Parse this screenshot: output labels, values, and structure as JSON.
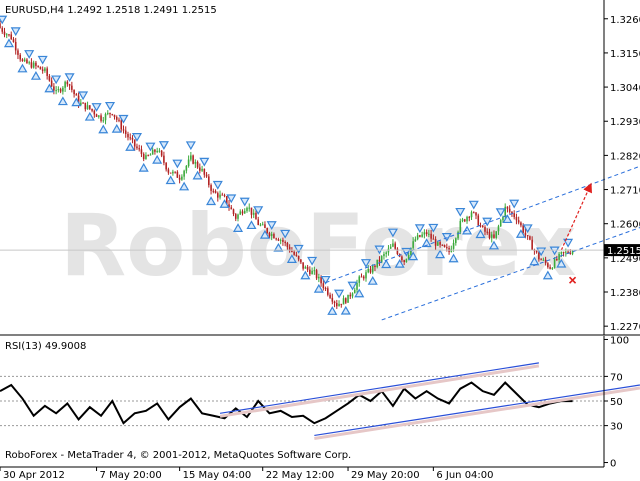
{
  "chart_data": {
    "type": "candlestick",
    "price_panel": {
      "title": "EURUSD,H4  1.2492 1.2518 1.2491 1.2515",
      "y_ticks": [
        "1.3260",
        "1.3150",
        "1.3040",
        "1.2930",
        "1.2820",
        "1.2710",
        "1.2600",
        "1.2490",
        "1.2380",
        "1.2270"
      ],
      "y_tick_values": [
        1.326,
        1.315,
        1.304,
        1.293,
        1.282,
        1.271,
        1.26,
        1.249,
        1.238,
        1.227
      ],
      "ylim": [
        1.2248,
        1.3314
      ],
      "current_price_label": "1.2515",
      "current_price": 1.2515,
      "close_path": [
        [
          0,
          1.323
        ],
        [
          5,
          1.32
        ],
        [
          10,
          1.312
        ],
        [
          15,
          1.311
        ],
        [
          20,
          1.309
        ],
        [
          25,
          1.302
        ],
        [
          30,
          1.306
        ],
        [
          35,
          1.299
        ],
        [
          40,
          1.297
        ],
        [
          45,
          1.294
        ],
        [
          50,
          1.296
        ],
        [
          55,
          1.29
        ],
        [
          60,
          1.285
        ],
        [
          65,
          1.281
        ],
        [
          70,
          1.284
        ],
        [
          75,
          1.277
        ],
        [
          80,
          1.275
        ],
        [
          85,
          1.281
        ],
        [
          90,
          1.277
        ],
        [
          95,
          1.27
        ],
        [
          100,
          1.268
        ],
        [
          105,
          1.262
        ],
        [
          110,
          1.266
        ],
        [
          115,
          1.26
        ],
        [
          120,
          1.257
        ],
        [
          125,
          1.255
        ],
        [
          130,
          1.251
        ],
        [
          135,
          1.246
        ],
        [
          140,
          1.244
        ],
        [
          145,
          1.239
        ],
        [
          150,
          1.234
        ],
        [
          155,
          1.236
        ],
        [
          160,
          1.242
        ],
        [
          165,
          1.245
        ],
        [
          170,
          1.249
        ],
        [
          175,
          1.253
        ],
        [
          180,
          1.248
        ],
        [
          185,
          1.255
        ],
        [
          190,
          1.257
        ],
        [
          195,
          1.253
        ],
        [
          200,
          1.251
        ],
        [
          205,
          1.26
        ],
        [
          210,
          1.264
        ],
        [
          215,
          1.258
        ],
        [
          220,
          1.255
        ],
        [
          225,
          1.265
        ],
        [
          230,
          1.262
        ],
        [
          235,
          1.255
        ],
        [
          240,
          1.249
        ],
        [
          245,
          1.246
        ],
        [
          250,
          1.25
        ],
        [
          255,
          1.2515
        ]
      ],
      "channel": {
        "upper": [
          [
            145,
            1.241
          ],
          [
            285,
            1.2785
          ]
        ],
        "lower": [
          [
            170,
            1.229
          ],
          [
            315,
            1.2665
          ]
        ]
      },
      "forecast_arrow": [
        [
          250,
          1.2515
        ],
        [
          263,
          1.2725
        ]
      ],
      "stop_marker": [
        255,
        1.2418
      ]
    },
    "rsi_panel": {
      "title": "RSI(13) 49.9008",
      "y_ticks": [
        "100",
        "70",
        "50",
        "30",
        "0"
      ],
      "y_tick_values": [
        100,
        70,
        50,
        30,
        0
      ],
      "ylim": [
        -2,
        102
      ],
      "levels": [
        70,
        50,
        30
      ],
      "values": [
        [
          0,
          58
        ],
        [
          5,
          63
        ],
        [
          10,
          52
        ],
        [
          15,
          38
        ],
        [
          20,
          46
        ],
        [
          25,
          40
        ],
        [
          30,
          48
        ],
        [
          35,
          35
        ],
        [
          40,
          45
        ],
        [
          45,
          38
        ],
        [
          50,
          50
        ],
        [
          55,
          32
        ],
        [
          60,
          40
        ],
        [
          65,
          42
        ],
        [
          70,
          48
        ],
        [
          75,
          35
        ],
        [
          80,
          45
        ],
        [
          85,
          52
        ],
        [
          90,
          40
        ],
        [
          95,
          38
        ],
        [
          100,
          36
        ],
        [
          105,
          44
        ],
        [
          110,
          37
        ],
        [
          115,
          50
        ],
        [
          120,
          40
        ],
        [
          125,
          42
        ],
        [
          130,
          37
        ],
        [
          135,
          38
        ],
        [
          140,
          32
        ],
        [
          145,
          36
        ],
        [
          150,
          42
        ],
        [
          155,
          48
        ],
        [
          160,
          55
        ],
        [
          165,
          50
        ],
        [
          170,
          58
        ],
        [
          175,
          46
        ],
        [
          180,
          60
        ],
        [
          185,
          52
        ],
        [
          190,
          58
        ],
        [
          195,
          52
        ],
        [
          200,
          48
        ],
        [
          205,
          60
        ],
        [
          210,
          65
        ],
        [
          215,
          58
        ],
        [
          220,
          55
        ],
        [
          225,
          65
        ],
        [
          230,
          56
        ],
        [
          235,
          47
        ],
        [
          240,
          45
        ],
        [
          245,
          48
        ],
        [
          250,
          50
        ],
        [
          255,
          49.9
        ]
      ],
      "channel": {
        "upper": [
          [
            98,
            40
          ],
          [
            240,
            81
          ]
        ],
        "lower": [
          [
            140,
            22
          ],
          [
            285,
            63
          ]
        ]
      }
    },
    "x_ticks": [
      "30 Apr 2012",
      "7 May 20:00",
      "15 May 04:00",
      "22 May 12:00",
      "29 May 20:00",
      "6 Jun 04:00"
    ],
    "x_tick_positions": [
      0,
      43,
      80,
      117,
      155,
      193
    ],
    "x_max": 269,
    "grid": false
  },
  "watermark_text": "RoboForex",
  "copyright": "RoboForex - MetaTrader 4, © 2001-2012, MetaQuotes Software Corp.",
  "colors": {
    "bull": "#3caa3c",
    "bear": "#b22222",
    "marker": "#3a86d8",
    "channel": "#2a6fdb",
    "rsi_channel": "#2a4fd8",
    "rsi_line": "#000000",
    "arrow": "#e0201e",
    "axis": "#000000",
    "price_badge_bg": "#000000",
    "price_badge_text": "#ffffff",
    "watermark": "#e4e4e4"
  }
}
